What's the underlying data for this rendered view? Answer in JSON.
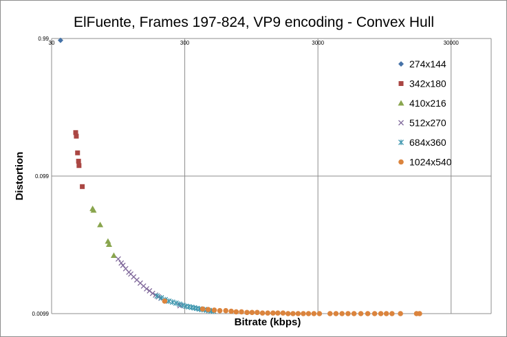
{
  "chart_data": {
    "type": "scatter",
    "title": "ElFuente, Frames 197-824, VP9 encoding - Convex Hull",
    "xlabel": "Bitrate (kbps)",
    "ylabel": "Distortion",
    "x_scale": "log",
    "y_scale": "log",
    "xlim": [
      30,
      60000
    ],
    "ylim": [
      0.0099,
      0.99
    ],
    "x_ticks": [
      30,
      300,
      3000,
      30000
    ],
    "x_tick_labels": [
      "30",
      "300",
      "3000",
      "30000"
    ],
    "y_ticks": [
      0.0099,
      0.099,
      0.99
    ],
    "y_tick_labels": [
      "0.0099",
      "0.099",
      "0.99"
    ],
    "grid": true,
    "legend_position": "right",
    "series": [
      {
        "name": "274x144",
        "color": "#4572a7",
        "marker": "diamond",
        "points": [
          [
            35,
            0.96
          ]
        ]
      },
      {
        "name": "342x180",
        "color": "#aa4643",
        "marker": "square",
        "points": [
          [
            45.5,
            0.205
          ],
          [
            46,
            0.193
          ],
          [
            47,
            0.146
          ],
          [
            47.8,
            0.127
          ],
          [
            48.2,
            0.118
          ],
          [
            51,
            0.083
          ]
        ]
      },
      {
        "name": "410x216",
        "color": "#89a54e",
        "marker": "triangle",
        "points": [
          [
            61,
            0.0574
          ],
          [
            62,
            0.0558
          ],
          [
            69.5,
            0.0438
          ],
          [
            79.5,
            0.0332
          ],
          [
            81,
            0.0315
          ],
          [
            88,
            0.0262
          ]
        ]
      },
      {
        "name": "512x270",
        "color": "#80699b",
        "marker": "cross",
        "points": [
          [
            95,
            0.0247
          ],
          [
            100,
            0.0231
          ],
          [
            103,
            0.0222
          ],
          [
            108,
            0.021
          ],
          [
            114,
            0.0198
          ],
          [
            118,
            0.0192
          ],
          [
            124,
            0.0183
          ],
          [
            131,
            0.0174
          ],
          [
            139,
            0.0165
          ],
          [
            147,
            0.0157
          ],
          [
            155,
            0.015
          ],
          [
            163,
            0.0145
          ],
          [
            172,
            0.0139
          ],
          [
            181,
            0.0135
          ],
          [
            190,
            0.0131
          ],
          [
            199,
            0.0128
          ],
          [
            276,
            0.0113
          ]
        ]
      },
      {
        "name": "684x360",
        "color": "#3d96ae",
        "marker": "star",
        "points": [
          [
            186,
            0.0133
          ],
          [
            200,
            0.0129
          ],
          [
            214,
            0.0125
          ],
          [
            228,
            0.0122
          ],
          [
            243,
            0.012
          ],
          [
            258,
            0.0118
          ],
          [
            274,
            0.0116
          ],
          [
            290,
            0.0114
          ],
          [
            306,
            0.0112
          ],
          [
            322,
            0.0111
          ],
          [
            338,
            0.011
          ],
          [
            354,
            0.0109
          ],
          [
            370,
            0.0108
          ],
          [
            387,
            0.0107
          ],
          [
            404,
            0.0106
          ],
          [
            421,
            0.0106
          ],
          [
            438,
            0.0105
          ],
          [
            456,
            0.0104
          ],
          [
            475,
            0.0104
          ],
          [
            494,
            0.0103
          ]
        ]
      },
      {
        "name": "1024x540",
        "color": "#db843d",
        "marker": "circle",
        "points": [
          [
            212,
            0.0122
          ],
          [
            409,
            0.0107
          ],
          [
            450,
            0.0106
          ],
          [
            500,
            0.0105
          ],
          [
            550,
            0.0104
          ],
          [
            610,
            0.0104
          ],
          [
            670,
            0.0103
          ],
          [
            730,
            0.0102
          ],
          [
            800,
            0.0102
          ],
          [
            880,
            0.0101
          ],
          [
            960,
            0.0101
          ],
          [
            1050,
            0.0101
          ],
          [
            1150,
            0.01
          ],
          [
            1260,
            0.01
          ],
          [
            1380,
            0.01
          ],
          [
            1500,
            0.01
          ],
          [
            1640,
            0.01
          ],
          [
            1790,
            0.0099
          ],
          [
            1950,
            0.0099
          ],
          [
            2130,
            0.0099
          ],
          [
            2330,
            0.0099
          ],
          [
            2550,
            0.0099
          ],
          [
            2800,
            0.0099
          ],
          [
            3080,
            0.0099
          ],
          [
            3700,
            0.0099
          ],
          [
            4100,
            0.0099
          ],
          [
            4550,
            0.0099
          ],
          [
            5050,
            0.0099
          ],
          [
            5600,
            0.0099
          ],
          [
            6300,
            0.0099
          ],
          [
            7100,
            0.0099
          ],
          [
            8000,
            0.0099
          ],
          [
            8900,
            0.0099
          ],
          [
            9800,
            0.0099
          ],
          [
            10800,
            0.0099
          ],
          [
            12500,
            0.0099
          ],
          [
            16500,
            0.0099
          ],
          [
            17400,
            0.0099
          ]
        ]
      }
    ]
  }
}
